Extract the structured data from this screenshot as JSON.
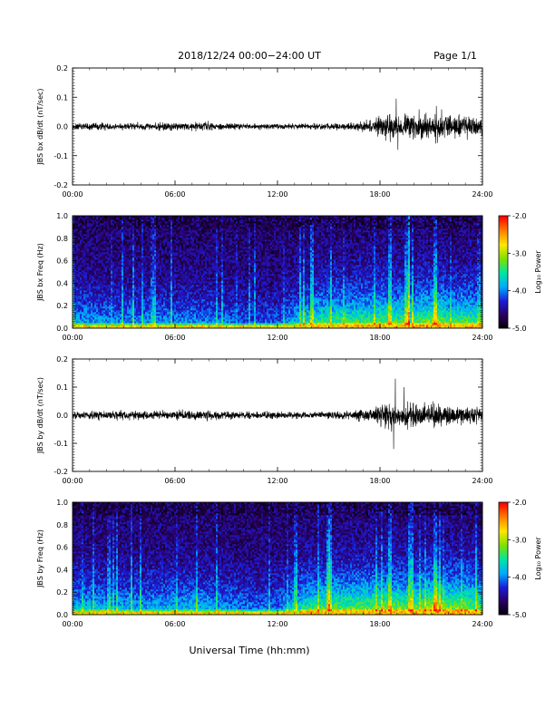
{
  "header": {
    "title": "2018/12/24  00:00−24:00 UT",
    "page": "Page 1/1"
  },
  "footer": {
    "xlabel": "Universal Time (hh:mm)"
  },
  "colors": {
    "trace": "#000000",
    "colormap": [
      "#000000",
      "#2a0060",
      "#1c1cd8",
      "#00aaff",
      "#00e6a0",
      "#7fe000",
      "#ffe600",
      "#ff7f00",
      "#ff0000"
    ]
  },
  "chart_data": [
    {
      "type": "line",
      "ylabel": "JBS bx dB/dt (nT/sec)",
      "xlim": [
        0,
        24
      ],
      "ylim": [
        -0.2,
        0.2
      ],
      "x_ticks": [
        "00:00",
        "06:00",
        "12:00",
        "18:00",
        "24:00"
      ],
      "y_ticks": [
        "-0.2",
        "-0.1",
        "0.0",
        "0.1",
        "0.2"
      ],
      "y_tick_values": [
        -0.2,
        -0.1,
        0.0,
        0.1,
        0.2
      ],
      "envelope": {
        "hours": [
          0,
          2,
          4,
          6,
          8,
          10,
          12,
          14,
          16,
          17.5,
          18.5,
          19,
          20,
          21,
          22,
          23,
          24
        ],
        "amplitude": [
          0.012,
          0.012,
          0.012,
          0.014,
          0.014,
          0.01,
          0.01,
          0.01,
          0.012,
          0.02,
          0.05,
          0.04,
          0.045,
          0.05,
          0.045,
          0.035,
          0.03
        ]
      },
      "peaks": [
        {
          "hour": 18.95,
          "value": 0.095
        },
        {
          "hour": 19.05,
          "value": -0.08
        },
        {
          "hour": 21.3,
          "value": 0.07
        }
      ]
    },
    {
      "type": "heatmap",
      "ylabel": "JBS bx Freq (Hz)",
      "xlim": [
        0,
        24
      ],
      "ylim": [
        0.0,
        1.0
      ],
      "x_ticks": [
        "00:00",
        "06:00",
        "12:00",
        "18:00",
        "24:00"
      ],
      "y_ticks": [
        "0.0",
        "0.2",
        "0.4",
        "0.6",
        "0.8",
        "1.0"
      ],
      "y_tick_values": [
        0.0,
        0.2,
        0.4,
        0.6,
        0.8,
        1.0
      ],
      "colorbar": {
        "label": "Log₁₀ Power",
        "range": [
          -5.0,
          -2.0
        ],
        "ticks": [
          "-2.0",
          "-3.0",
          "-4.0",
          "-5.0"
        ],
        "tick_values": [
          -2.0,
          -3.0,
          -4.0,
          -5.0
        ]
      },
      "activity": {
        "hours": [
          0,
          2,
          4,
          6,
          8,
          10,
          12,
          13.5,
          15,
          17,
          18.5,
          20,
          21.3,
          22,
          23,
          24
        ],
        "level": [
          0.35,
          0.3,
          0.3,
          0.3,
          0.3,
          0.22,
          0.22,
          0.45,
          0.55,
          0.55,
          0.6,
          0.55,
          0.7,
          0.55,
          0.6,
          0.5
        ]
      },
      "bright_columns": [
        21.2,
        18.6,
        14.0,
        19.6
      ]
    },
    {
      "type": "line",
      "ylabel": "JBS by dB/dt (nT/sec)",
      "xlim": [
        0,
        24
      ],
      "ylim": [
        -0.2,
        0.2
      ],
      "x_ticks": [
        "00:00",
        "06:00",
        "12:00",
        "18:00",
        "24:00"
      ],
      "y_ticks": [
        "-0.2",
        "-0.1",
        "0.0",
        "0.1",
        "0.2"
      ],
      "y_tick_values": [
        -0.2,
        -0.1,
        0.0,
        0.1,
        0.2
      ],
      "envelope": {
        "hours": [
          0,
          2,
          4,
          6,
          8,
          10,
          12,
          14,
          16,
          17.5,
          18.5,
          19,
          20,
          21,
          22,
          23,
          24
        ],
        "amplitude": [
          0.015,
          0.017,
          0.015,
          0.017,
          0.017,
          0.012,
          0.012,
          0.013,
          0.015,
          0.025,
          0.05,
          0.045,
          0.045,
          0.04,
          0.035,
          0.03,
          0.028
        ]
      },
      "peaks": [
        {
          "hour": 18.9,
          "value": 0.13
        },
        {
          "hour": 18.8,
          "value": -0.12
        },
        {
          "hour": 19.4,
          "value": 0.1
        }
      ]
    },
    {
      "type": "heatmap",
      "ylabel": "JBS by Freq (Hz)",
      "xlim": [
        0,
        24
      ],
      "ylim": [
        0.0,
        1.0
      ],
      "x_ticks": [
        "00:00",
        "06:00",
        "12:00",
        "18:00",
        "24:00"
      ],
      "y_ticks": [
        "0.0",
        "0.2",
        "0.4",
        "0.6",
        "0.8",
        "1.0"
      ],
      "y_tick_values": [
        0.0,
        0.2,
        0.4,
        0.6,
        0.8,
        1.0
      ],
      "colorbar": {
        "label": "Log₁₀ Power",
        "range": [
          -5.0,
          -2.0
        ],
        "ticks": [
          "-2.0",
          "-3.0",
          "-4.0",
          "-5.0"
        ],
        "tick_values": [
          -2.0,
          -3.0,
          -4.0,
          -5.0
        ]
      },
      "activity": {
        "hours": [
          0,
          2,
          4,
          6,
          8,
          10,
          12,
          13.5,
          15,
          17,
          18.5,
          20,
          21.3,
          22,
          23,
          24
        ],
        "level": [
          0.4,
          0.38,
          0.35,
          0.38,
          0.38,
          0.28,
          0.28,
          0.5,
          0.6,
          0.62,
          0.65,
          0.6,
          0.75,
          0.65,
          0.7,
          0.55
        ]
      },
      "bright_columns": [
        21.2,
        18.6,
        15.0,
        19.8
      ]
    }
  ]
}
